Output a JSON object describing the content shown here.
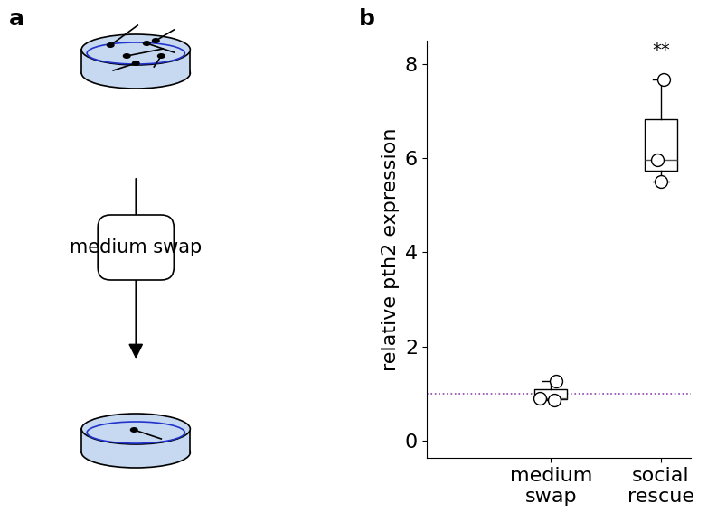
{
  "panel_a": {
    "label": "a",
    "step": "medium swap"
  },
  "chart_data": {
    "type": "box",
    "panel_label": "b",
    "y_label": "relative pth2 expression",
    "categories": [
      "medium swap",
      "social rescue"
    ],
    "points": [
      [
        0.85,
        0.9,
        1.27
      ],
      [
        5.5,
        5.97,
        7.68
      ]
    ],
    "reference_value": 1,
    "annotations": [
      {
        "text": "**",
        "category": "social rescue"
      }
    ],
    "ylim": [
      -0.37,
      8.5
    ],
    "yticks": [
      0,
      2,
      4,
      6,
      8
    ],
    "grid": false
  }
}
